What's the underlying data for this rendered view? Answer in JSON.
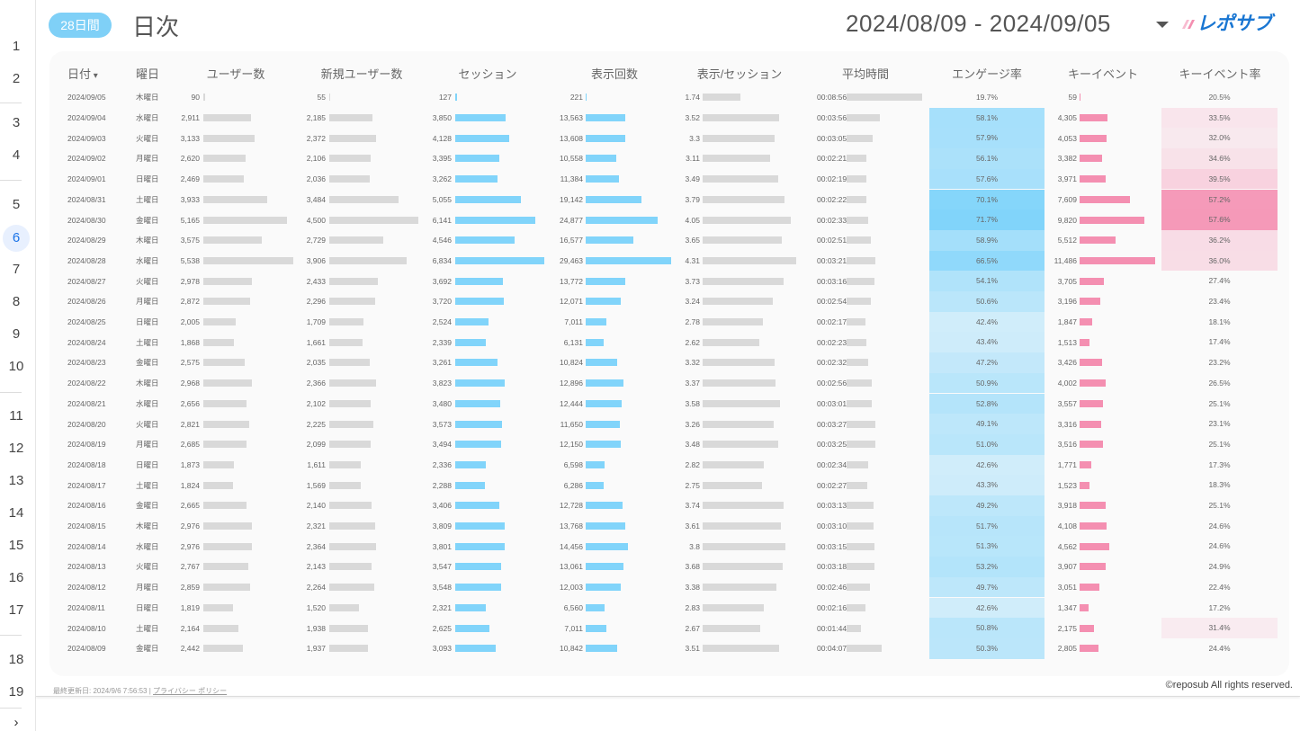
{
  "sidebar": {
    "pages": [
      "1",
      "2",
      "3",
      "4",
      "5",
      "6",
      "7",
      "8",
      "9",
      "10",
      "11",
      "12",
      "13",
      "14",
      "15",
      "16",
      "17",
      "18",
      "19"
    ],
    "selected": "6",
    "next_icon": "chevron-right-icon"
  },
  "header": {
    "period_badge": "28日間",
    "title": "日次",
    "date_range": "2024/08/09 - 2024/09/05",
    "logo_text": "レポサブ"
  },
  "colors": {
    "accent": "#7fd0f7",
    "session_bar": "#81d4fa",
    "key_event_bar": "#f48fb1",
    "neutral_bar": "#d9d9d9",
    "engagement_heat": "#81d4fa",
    "key_rate_heat": "#f48fb1"
  },
  "table": {
    "columns": [
      "日付",
      "曜日",
      "ユーザー数",
      "新規ユーザー数",
      "セッション",
      "表示回数",
      "表示/セッション",
      "平均時間",
      "エンゲージ率",
      "キーイベント",
      "キーイベント率"
    ],
    "sort_column": "日付",
    "sort_direction": "desc",
    "rows": [
      [
        "2024/09/05",
        "木曜日",
        "90",
        "55",
        "127",
        "221",
        "1.74",
        "00:08:56",
        "19.7%",
        "59",
        "20.5%"
      ],
      [
        "2024/09/04",
        "水曜日",
        "2,911",
        "2,185",
        "3,850",
        "13,563",
        "3.52",
        "00:03:56",
        "58.1%",
        "4,305",
        "33.5%"
      ],
      [
        "2024/09/03",
        "火曜日",
        "3,133",
        "2,372",
        "4,128",
        "13,608",
        "3.3",
        "00:03:05",
        "57.9%",
        "4,053",
        "32.0%"
      ],
      [
        "2024/09/02",
        "月曜日",
        "2,620",
        "2,106",
        "3,395",
        "10,558",
        "3.11",
        "00:02:21",
        "56.1%",
        "3,382",
        "34.6%"
      ],
      [
        "2024/09/01",
        "日曜日",
        "2,469",
        "2,036",
        "3,262",
        "11,384",
        "3.49",
        "00:02:19",
        "57.6%",
        "3,971",
        "39.5%"
      ],
      [
        "2024/08/31",
        "土曜日",
        "3,933",
        "3,484",
        "5,055",
        "19,142",
        "3.79",
        "00:02:22",
        "70.1%",
        "7,609",
        "57.2%"
      ],
      [
        "2024/08/30",
        "金曜日",
        "5,165",
        "4,500",
        "6,141",
        "24,877",
        "4.05",
        "00:02:33",
        "71.7%",
        "9,820",
        "57.6%"
      ],
      [
        "2024/08/29",
        "木曜日",
        "3,575",
        "2,729",
        "4,546",
        "16,577",
        "3.65",
        "00:02:51",
        "58.9%",
        "5,512",
        "36.2%"
      ],
      [
        "2024/08/28",
        "水曜日",
        "5,538",
        "3,906",
        "6,834",
        "29,463",
        "4.31",
        "00:03:21",
        "66.5%",
        "11,486",
        "36.0%"
      ],
      [
        "2024/08/27",
        "火曜日",
        "2,978",
        "2,433",
        "3,692",
        "13,772",
        "3.73",
        "00:03:16",
        "54.1%",
        "3,705",
        "27.4%"
      ],
      [
        "2024/08/26",
        "月曜日",
        "2,872",
        "2,296",
        "3,720",
        "12,071",
        "3.24",
        "00:02:54",
        "50.6%",
        "3,196",
        "23.4%"
      ],
      [
        "2024/08/25",
        "日曜日",
        "2,005",
        "1,709",
        "2,524",
        "7,011",
        "2.78",
        "00:02:17",
        "42.4%",
        "1,847",
        "18.1%"
      ],
      [
        "2024/08/24",
        "土曜日",
        "1,868",
        "1,661",
        "2,339",
        "6,131",
        "2.62",
        "00:02:23",
        "43.4%",
        "1,513",
        "17.4%"
      ],
      [
        "2024/08/23",
        "金曜日",
        "2,575",
        "2,035",
        "3,261",
        "10,824",
        "3.32",
        "00:02:32",
        "47.2%",
        "3,426",
        "23.2%"
      ],
      [
        "2024/08/22",
        "木曜日",
        "2,968",
        "2,366",
        "3,823",
        "12,896",
        "3.37",
        "00:02:56",
        "50.9%",
        "4,002",
        "26.5%"
      ],
      [
        "2024/08/21",
        "水曜日",
        "2,656",
        "2,102",
        "3,480",
        "12,444",
        "3.58",
        "00:03:01",
        "52.8%",
        "3,557",
        "25.1%"
      ],
      [
        "2024/08/20",
        "火曜日",
        "2,821",
        "2,225",
        "3,573",
        "11,650",
        "3.26",
        "00:03:27",
        "49.1%",
        "3,316",
        "23.1%"
      ],
      [
        "2024/08/19",
        "月曜日",
        "2,685",
        "2,099",
        "3,494",
        "12,150",
        "3.48",
        "00:03:25",
        "51.0%",
        "3,516",
        "25.1%"
      ],
      [
        "2024/08/18",
        "日曜日",
        "1,873",
        "1,611",
        "2,336",
        "6,598",
        "2.82",
        "00:02:34",
        "42.6%",
        "1,771",
        "17.3%"
      ],
      [
        "2024/08/17",
        "土曜日",
        "1,824",
        "1,569",
        "2,288",
        "6,286",
        "2.75",
        "00:02:27",
        "43.3%",
        "1,523",
        "18.3%"
      ],
      [
        "2024/08/16",
        "金曜日",
        "2,665",
        "2,140",
        "3,406",
        "12,728",
        "3.74",
        "00:03:13",
        "49.2%",
        "3,918",
        "25.1%"
      ],
      [
        "2024/08/15",
        "木曜日",
        "2,976",
        "2,321",
        "3,809",
        "13,768",
        "3.61",
        "00:03:10",
        "51.7%",
        "4,108",
        "24.6%"
      ],
      [
        "2024/08/14",
        "水曜日",
        "2,976",
        "2,364",
        "3,801",
        "14,456",
        "3.8",
        "00:03:15",
        "51.3%",
        "4,562",
        "24.6%"
      ],
      [
        "2024/08/13",
        "火曜日",
        "2,767",
        "2,143",
        "3,547",
        "13,061",
        "3.68",
        "00:03:18",
        "53.2%",
        "3,907",
        "24.9%"
      ],
      [
        "2024/08/12",
        "月曜日",
        "2,859",
        "2,264",
        "3,548",
        "12,003",
        "3.38",
        "00:02:46",
        "49.7%",
        "3,051",
        "22.4%"
      ],
      [
        "2024/08/11",
        "日曜日",
        "1,819",
        "1,520",
        "2,321",
        "6,560",
        "2.83",
        "00:02:16",
        "42.6%",
        "1,347",
        "17.2%"
      ],
      [
        "2024/08/10",
        "土曜日",
        "2,164",
        "1,938",
        "2,625",
        "7,011",
        "2.67",
        "00:01:44",
        "50.8%",
        "2,175",
        "31.4%"
      ],
      [
        "2024/08/09",
        "金曜日",
        "2,442",
        "1,937",
        "3,093",
        "10,842",
        "3.51",
        "00:04:07",
        "50.3%",
        "2,805",
        "24.4%"
      ]
    ]
  },
  "footer": {
    "last_updated": "最終更新日: 2024/9/6 7:56:53",
    "separator": "|",
    "privacy_link": "プライバシー ポリシー",
    "copyright": "©reposub All rights reserved."
  }
}
